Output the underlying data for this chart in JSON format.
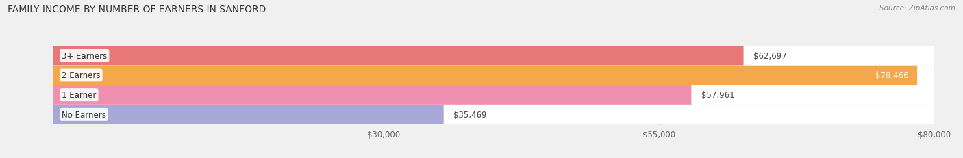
{
  "title": "FAMILY INCOME BY NUMBER OF EARNERS IN SANFORD",
  "source": "Source: ZipAtlas.com",
  "categories": [
    "No Earners",
    "1 Earner",
    "2 Earners",
    "3+ Earners"
  ],
  "values": [
    35469,
    57961,
    78466,
    62697
  ],
  "bar_colors": [
    "#a8a8d8",
    "#f090b0",
    "#f5a84a",
    "#e87878"
  ],
  "value_labels": [
    "$35,469",
    "$57,961",
    "$78,466",
    "$62,697"
  ],
  "xmin": 0,
  "xmax": 80000,
  "xticks": [
    30000,
    55000,
    80000
  ],
  "xtick_labels": [
    "$30,000",
    "$55,000",
    "$80,000"
  ],
  "title_fontsize": 10,
  "label_fontsize": 8.5,
  "value_fontsize": 8.5,
  "source_fontsize": 7.5,
  "background_color": "#f0f0f0"
}
